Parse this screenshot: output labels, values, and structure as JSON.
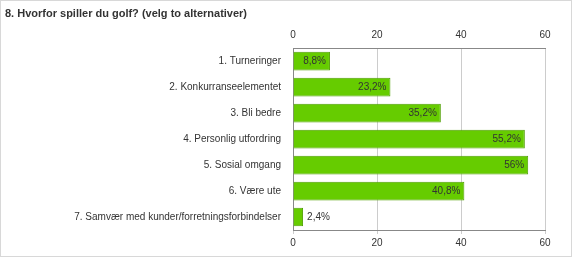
{
  "chart_data": {
    "type": "bar",
    "orientation": "horizontal",
    "title": "8. Hvorfor spiller du golf? (velg to alternativer)",
    "categories": [
      "1. Turneringer",
      "2. Konkurranseelementet",
      "3. Bli bedre",
      "4. Personlig utfordring",
      "5. Sosial omgang",
      "6. Være ute",
      "7. Samvær med kunder/forretningsforbindelser"
    ],
    "values": [
      8.8,
      23.2,
      35.2,
      55.2,
      56,
      40.8,
      2.4
    ],
    "value_labels": [
      "8,8%",
      "23,2%",
      "35,2%",
      "55,2%",
      "56%",
      "40,8%",
      "2,4%"
    ],
    "color": "#66cc00",
    "xlim": [
      0,
      60
    ],
    "xticks": [
      0,
      20,
      40,
      60
    ],
    "grid": true,
    "data_labels": true
  }
}
